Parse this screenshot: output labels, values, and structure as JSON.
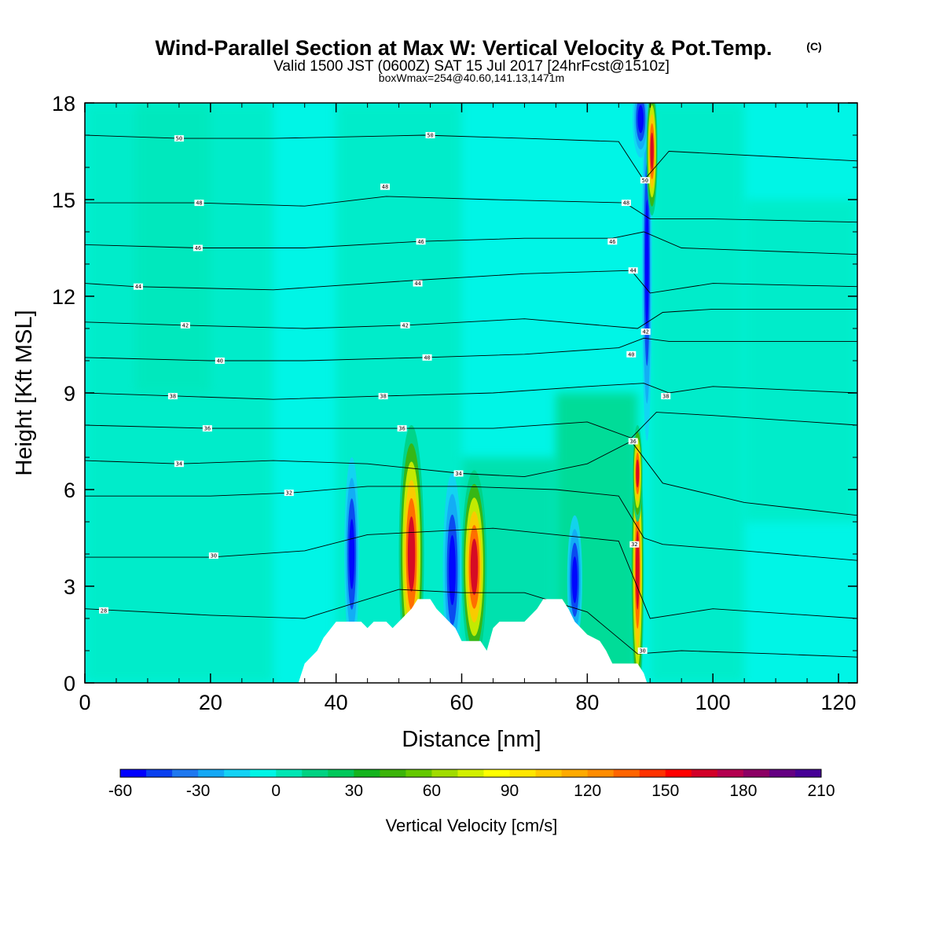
{
  "chart_data": {
    "type": "heatmap",
    "title": "Wind-Parallel Section at Max W: Vertical Velocity & Pot.Temp.",
    "title_mark": "(C)",
    "subtitle": "Valid 1500 JST (0600Z) SAT 15 Jul 2017 [24hrFcst@1510z]",
    "subtitle2": "boxWmax=254@40.60,141.13,1471m",
    "xlabel": "Distance [nm]",
    "ylabel": "Height [Kft MSL]",
    "xlim": [
      0,
      123
    ],
    "ylim": [
      0,
      18
    ],
    "x_ticks": [
      0,
      20,
      40,
      60,
      80,
      100,
      120
    ],
    "y_ticks": [
      0,
      3,
      6,
      9,
      12,
      15,
      18
    ],
    "colorbar": {
      "label": "Vertical Velocity [cm/s]",
      "min": -60,
      "max": 210,
      "step": 10,
      "tick_labels": [
        -60,
        -30,
        0,
        30,
        60,
        90,
        120,
        150,
        180,
        210
      ],
      "colors": [
        "#0000ff",
        "#0a40f0",
        "#1e78f0",
        "#14a8f5",
        "#14d2f5",
        "#00f5e6",
        "#00e6b4",
        "#00d282",
        "#00c85a",
        "#14b41e",
        "#3cb40a",
        "#64c800",
        "#a0dc00",
        "#d2f000",
        "#ffff00",
        "#ffe600",
        "#ffc800",
        "#ffaa00",
        "#ff8c00",
        "#ff6400",
        "#ff3200",
        "#ff0000",
        "#d20028",
        "#b40050",
        "#8c0064",
        "#640082",
        "#460096"
      ]
    },
    "terrain": [
      [
        34,
        0
      ],
      [
        35,
        0.6
      ],
      [
        37,
        1
      ],
      [
        38,
        1.4
      ],
      [
        40,
        1.9
      ],
      [
        44,
        1.9
      ],
      [
        45,
        1.7
      ],
      [
        46,
        1.9
      ],
      [
        48,
        1.9
      ],
      [
        49,
        1.7
      ],
      [
        50,
        1.9
      ],
      [
        52,
        2.3
      ],
      [
        53,
        2.6
      ],
      [
        55,
        2.6
      ],
      [
        56,
        2.3
      ],
      [
        58,
        1.9
      ],
      [
        59,
        1.7
      ],
      [
        60,
        1.3
      ],
      [
        63,
        1.3
      ],
      [
        64,
        1
      ],
      [
        65,
        1.7
      ],
      [
        66,
        1.9
      ],
      [
        70,
        1.9
      ],
      [
        72,
        2.3
      ],
      [
        73,
        2.6
      ],
      [
        76,
        2.6
      ],
      [
        77,
        2.3
      ],
      [
        78,
        1.9
      ],
      [
        79,
        1.7
      ],
      [
        80,
        1.5
      ],
      [
        82,
        1.3
      ],
      [
        83,
        1
      ],
      [
        84,
        0.6
      ],
      [
        88,
        0.6
      ],
      [
        89,
        0.3
      ],
      [
        89.5,
        0
      ]
    ],
    "features": [
      {
        "kind": "updraft",
        "x": 88.0,
        "y": 3.5,
        "w": 1.0,
        "h": 4.2
      },
      {
        "kind": "updraft",
        "x": 88.0,
        "y": 6.5,
        "w": 0.8,
        "h": 1.5
      },
      {
        "kind": "downdraft",
        "x": 89.5,
        "y": 13.0,
        "w": 0.8,
        "h": 5.5
      },
      {
        "kind": "downdraft",
        "x": 88.5,
        "y": 17.5,
        "w": 1.3,
        "h": 1.2
      },
      {
        "kind": "updraft",
        "x": 90.3,
        "y": 16.5,
        "w": 0.9,
        "h": 2.0
      },
      {
        "kind": "downdraft",
        "x": 58.5,
        "y": 3.5,
        "w": 1.5,
        "h": 3.0
      },
      {
        "kind": "downdraft",
        "x": 42.5,
        "y": 4.0,
        "w": 1.2,
        "h": 3.0
      },
      {
        "kind": "updraft",
        "x": 62.0,
        "y": 3.6,
        "w": 2.0,
        "h": 3.0
      },
      {
        "kind": "updraft",
        "x": 52.0,
        "y": 4.0,
        "w": 2.0,
        "h": 4.0
      },
      {
        "kind": "downdraft",
        "x": 78.0,
        "y": 3.2,
        "w": 1.2,
        "h": 2.0
      }
    ],
    "isentropes": [
      {
        "theta": 28,
        "points": [
          [
            0,
            2.3
          ],
          [
            20,
            2.1
          ],
          [
            35,
            2.0
          ],
          [
            40,
            2.3
          ],
          [
            50,
            2.9
          ],
          [
            60,
            2.8
          ],
          [
            70,
            2.8
          ],
          [
            80,
            2.2
          ],
          [
            88,
            0.9
          ],
          [
            95,
            1.0
          ],
          [
            110,
            0.9
          ],
          [
            123,
            0.8
          ]
        ],
        "label_at": [
          3,
          2.25
        ]
      },
      {
        "theta": 30,
        "points": [
          [
            0,
            3.9
          ],
          [
            20,
            3.9
          ],
          [
            35,
            4.1
          ],
          [
            45,
            4.6
          ],
          [
            55,
            4.7
          ],
          [
            65,
            4.8
          ],
          [
            75,
            4.6
          ],
          [
            85,
            4.4
          ],
          [
            90,
            2.0
          ],
          [
            100,
            2.3
          ],
          [
            123,
            2.0
          ]
        ],
        "label_at": [
          20.5,
          3.95
        ],
        "label2_at": [
          88.8,
          1.0
        ]
      },
      {
        "theta": 32,
        "points": [
          [
            0,
            5.8
          ],
          [
            20,
            5.8
          ],
          [
            33,
            5.9
          ],
          [
            45,
            6.1
          ],
          [
            60,
            6.1
          ],
          [
            75,
            6.0
          ],
          [
            85,
            5.8
          ],
          [
            89,
            4.5
          ],
          [
            92,
            4.3
          ],
          [
            105,
            4.1
          ],
          [
            123,
            3.8
          ]
        ],
        "label_at": [
          32.5,
          5.9
        ],
        "label2_at": [
          87.5,
          4.3
        ]
      },
      {
        "theta": 34,
        "points": [
          [
            0,
            6.9
          ],
          [
            15,
            6.8
          ],
          [
            30,
            6.9
          ],
          [
            45,
            6.8
          ],
          [
            60,
            6.5
          ],
          [
            70,
            6.4
          ],
          [
            80,
            6.8
          ],
          [
            87,
            7.5
          ],
          [
            92,
            6.2
          ],
          [
            105,
            5.6
          ],
          [
            123,
            5.2
          ]
        ],
        "label_at": [
          15,
          6.8
        ],
        "label2_at": [
          59.5,
          6.5
        ]
      },
      {
        "theta": 36,
        "points": [
          [
            0,
            8.0
          ],
          [
            20,
            7.9
          ],
          [
            35,
            7.9
          ],
          [
            50,
            7.9
          ],
          [
            65,
            7.9
          ],
          [
            80,
            8.1
          ],
          [
            87,
            7.6
          ],
          [
            91,
            8.4
          ],
          [
            100,
            8.3
          ],
          [
            123,
            8.0
          ]
        ],
        "label_at": [
          19.5,
          7.9
        ],
        "label2_at": [
          50.5,
          7.9
        ],
        "label3_at": [
          87.3,
          7.5
        ]
      },
      {
        "theta": 38,
        "points": [
          [
            0,
            9.0
          ],
          [
            15,
            8.9
          ],
          [
            30,
            8.8
          ],
          [
            47,
            8.9
          ],
          [
            65,
            9.0
          ],
          [
            80,
            9.2
          ],
          [
            89,
            9.3
          ],
          [
            93,
            9.0
          ],
          [
            100,
            9.2
          ],
          [
            123,
            9.0
          ]
        ],
        "label_at": [
          14,
          8.9
        ],
        "label2_at": [
          47.5,
          8.9
        ],
        "label3_at": [
          92.5,
          8.9
        ]
      },
      {
        "theta": 40,
        "points": [
          [
            0,
            10.1
          ],
          [
            20,
            10.0
          ],
          [
            35,
            10.0
          ],
          [
            54,
            10.1
          ],
          [
            70,
            10.2
          ],
          [
            85,
            10.4
          ],
          [
            89,
            10.7
          ],
          [
            93,
            10.6
          ],
          [
            123,
            10.6
          ]
        ],
        "label_at": [
          21.5,
          10.0
        ],
        "label2_at": [
          54.5,
          10.1
        ],
        "label3_at": [
          87.0,
          10.2
        ]
      },
      {
        "theta": 42,
        "points": [
          [
            0,
            11.2
          ],
          [
            16,
            11.1
          ],
          [
            35,
            11.0
          ],
          [
            51,
            11.1
          ],
          [
            70,
            11.3
          ],
          [
            88,
            11.0
          ],
          [
            92,
            11.5
          ],
          [
            100,
            11.6
          ],
          [
            123,
            11.6
          ]
        ],
        "label_at": [
          16,
          11.1
        ],
        "label2_at": [
          51,
          11.1
        ],
        "label3_at": [
          89.3,
          10.9
        ]
      },
      {
        "theta": 44,
        "points": [
          [
            0,
            12.4
          ],
          [
            8,
            12.3
          ],
          [
            30,
            12.2
          ],
          [
            53,
            12.5
          ],
          [
            70,
            12.7
          ],
          [
            87,
            12.8
          ],
          [
            90,
            12.1
          ],
          [
            100,
            12.4
          ],
          [
            123,
            12.3
          ]
        ],
        "label_at": [
          8.5,
          12.3
        ],
        "label2_at": [
          53,
          12.4
        ],
        "label3_at": [
          87.3,
          12.8
        ]
      },
      {
        "theta": 46,
        "points": [
          [
            0,
            13.6
          ],
          [
            18,
            13.5
          ],
          [
            35,
            13.5
          ],
          [
            53,
            13.7
          ],
          [
            70,
            13.8
          ],
          [
            84,
            13.8
          ],
          [
            89,
            14.0
          ],
          [
            95,
            13.5
          ],
          [
            123,
            13.3
          ]
        ],
        "label_at": [
          18,
          13.5
        ],
        "label2_at": [
          53.5,
          13.7
        ],
        "label3_at": [
          84,
          13.7
        ]
      },
      {
        "theta": 48,
        "points": [
          [
            0,
            14.9
          ],
          [
            18,
            14.9
          ],
          [
            35,
            14.8
          ],
          [
            48,
            15.1
          ],
          [
            65,
            15.0
          ],
          [
            86,
            14.9
          ],
          [
            90,
            14.4
          ],
          [
            100,
            14.4
          ],
          [
            123,
            14.3
          ]
        ],
        "label_at": [
          18.2,
          14.9
        ],
        "label2_at": [
          47.8,
          15.4
        ],
        "label3_at": [
          86.2,
          14.9
        ]
      },
      {
        "theta": 50,
        "points": [
          [
            0,
            17.0
          ],
          [
            15,
            16.9
          ],
          [
            30,
            16.9
          ],
          [
            54,
            17.0
          ],
          [
            70,
            16.9
          ],
          [
            85,
            16.8
          ],
          [
            89,
            15.6
          ],
          [
            93,
            16.5
          ],
          [
            123,
            16.2
          ]
        ],
        "label_at": [
          15,
          16.9
        ],
        "label2_at": [
          55,
          17.0
        ],
        "label3_at": [
          89.2,
          15.6
        ]
      }
    ],
    "grid": false,
    "legend": "bottom"
  }
}
